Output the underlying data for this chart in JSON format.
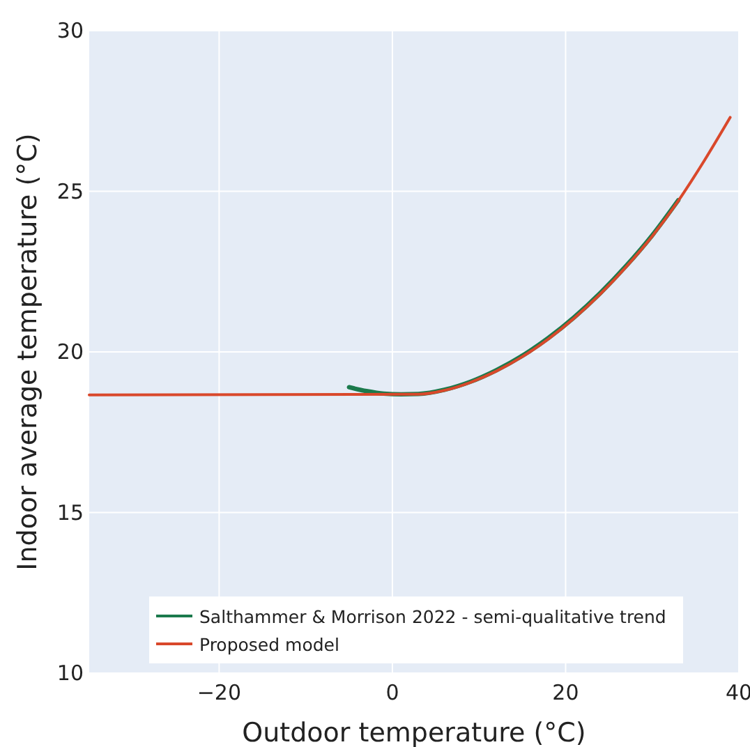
{
  "chart_data": {
    "type": "line",
    "xlabel": "Outdoor temperature (°C)",
    "ylabel": "Indoor average temperature (°C)",
    "xlim": [
      -35,
      40
    ],
    "ylim": [
      10,
      30
    ],
    "xticks": [
      {
        "value": -20,
        "label": "−20"
      },
      0,
      20,
      40
    ],
    "yticks": [
      10,
      15,
      20,
      25,
      30
    ],
    "grid": true,
    "legend": "bottom",
    "series": [
      {
        "name": "Salthammer & Morrison 2022 - semi-qualitative trend",
        "color": "#1b7a4c",
        "x": [
          -5,
          -3,
          -1,
          1,
          3,
          6,
          9,
          12,
          15,
          18,
          21,
          24,
          27,
          30,
          33
        ],
        "values": [
          18.9,
          18.78,
          18.7,
          18.68,
          18.69,
          18.82,
          19.07,
          19.43,
          19.88,
          20.43,
          21.08,
          21.83,
          22.68,
          23.63,
          24.72
        ]
      },
      {
        "name": "Proposed model",
        "color": "#d9482b",
        "x": [
          -35,
          3,
          6,
          9,
          12,
          15,
          18,
          21,
          24,
          27,
          30,
          33,
          36,
          39
        ],
        "values": [
          18.66,
          18.68,
          18.8,
          19.05,
          19.4,
          19.85,
          20.4,
          21.05,
          21.8,
          22.65,
          23.6,
          24.7,
          25.95,
          27.3
        ]
      }
    ]
  }
}
